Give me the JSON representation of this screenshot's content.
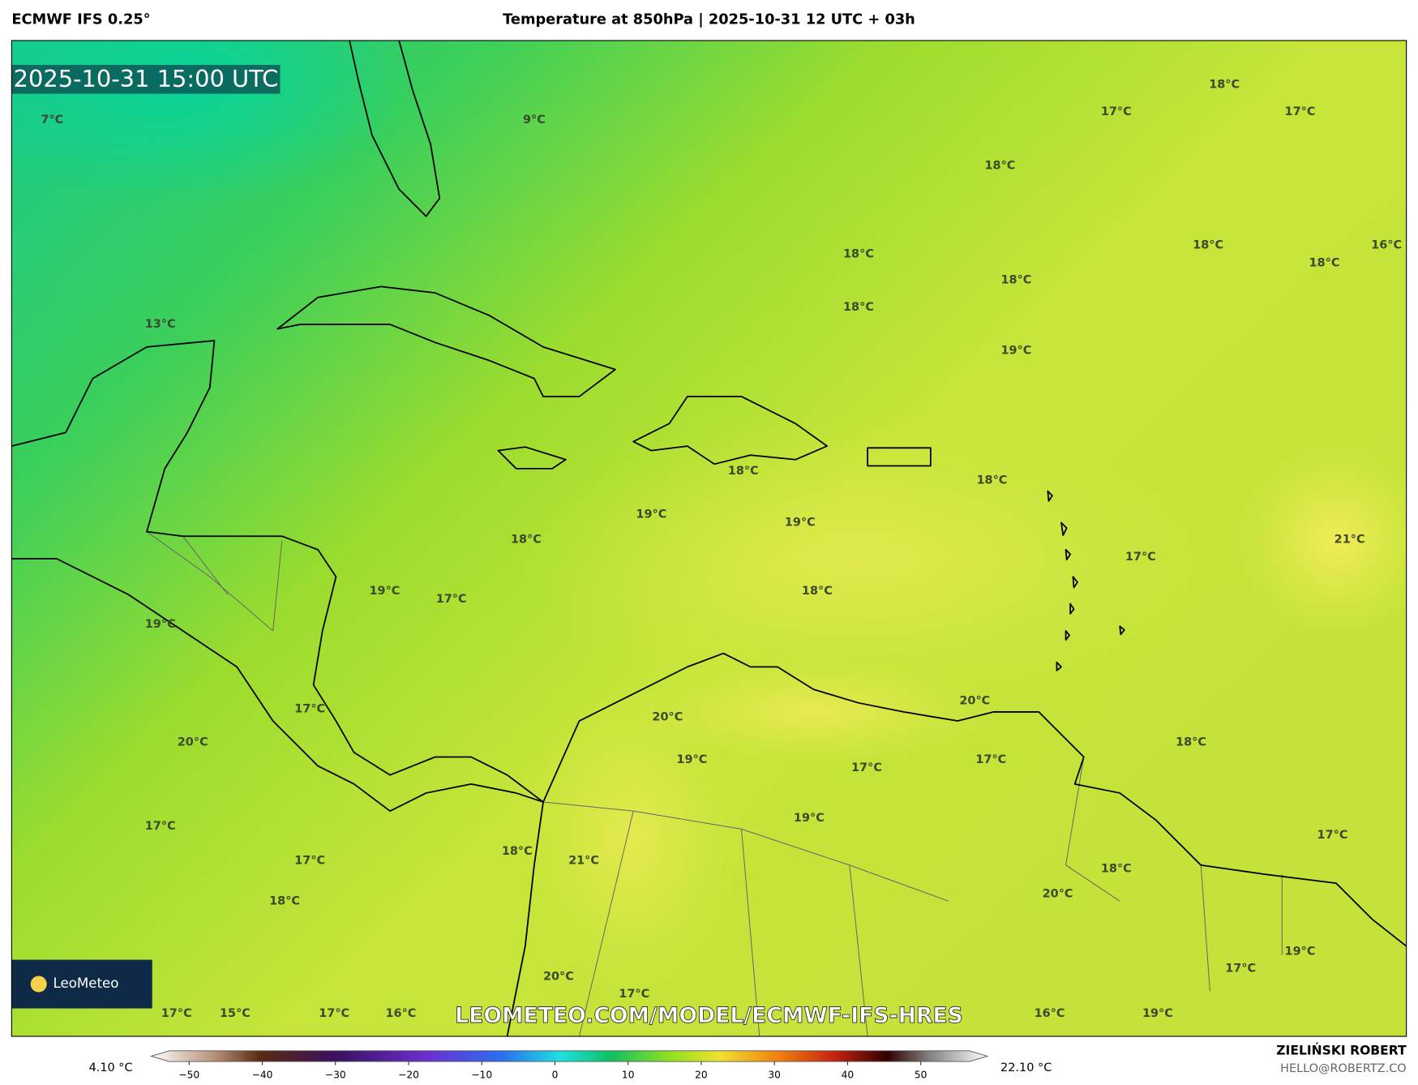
{
  "header": {
    "model": "ECMWF IFS 0.25°",
    "title": "Temperature at 850hPa | 2025-10-31 12 UTC + 03h"
  },
  "map": {
    "timestamp": "2025-10-31 15:00 UTC",
    "labels": [
      "7°C",
      "9°C",
      "13°C",
      "17°C",
      "18°C",
      "17°C",
      "18°C",
      "18°C",
      "18°C",
      "18°C",
      "18°C",
      "16°C",
      "18°C",
      "19°C",
      "18°C",
      "18°C",
      "19°C",
      "19°C",
      "18°C",
      "21°C",
      "17°C",
      "19°C",
      "17°C",
      "18°C",
      "19°C",
      "20°C",
      "17°C",
      "20°C",
      "20°C",
      "18°C",
      "19°C",
      "17°C",
      "17°C",
      "19°C",
      "17°C",
      "17°C",
      "18°C",
      "21°C",
      "17°C",
      "18°C",
      "20°C",
      "18°C",
      "19°C",
      "17°C",
      "20°C",
      "17°C",
      "17°C",
      "15°C",
      "17°C",
      "16°C",
      "16°C",
      "19°C"
    ],
    "watermark": "LEOMETEO.COM/MODEL/ECMWF-IFS-HRES",
    "logo": "LeoMeteo"
  },
  "colorbar": {
    "min_label": "4.10 °C",
    "max_label": "22.10 °C",
    "ticks": [
      {
        "value": -50,
        "label": "−50"
      },
      {
        "value": -40,
        "label": "−40"
      },
      {
        "value": -30,
        "label": "−30"
      },
      {
        "value": -20,
        "label": "−20"
      },
      {
        "value": -10,
        "label": "−10"
      },
      0,
      10,
      20,
      30,
      40,
      50
    ]
  },
  "footer": {
    "author": "ZIELIŃSKI ROBERT",
    "email": "HELLO@ROBERTZ.CO"
  }
}
